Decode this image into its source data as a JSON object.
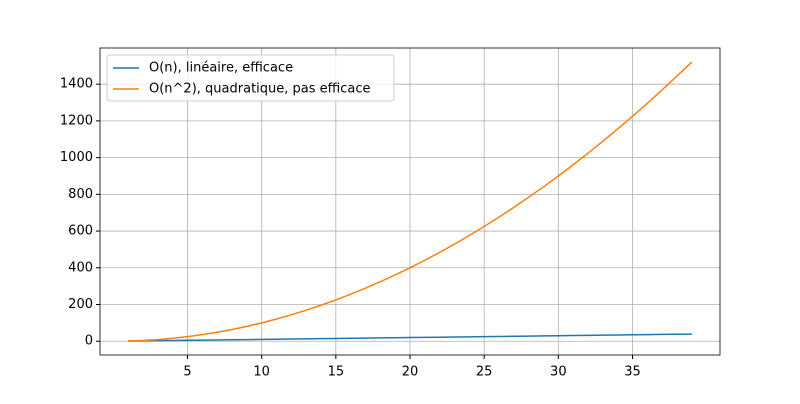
{
  "chart_data": {
    "type": "line",
    "x": [
      1,
      2,
      3,
      4,
      5,
      6,
      7,
      8,
      9,
      10,
      11,
      12,
      13,
      14,
      15,
      16,
      17,
      18,
      19,
      20,
      21,
      22,
      23,
      24,
      25,
      26,
      27,
      28,
      29,
      30,
      31,
      32,
      33,
      34,
      35,
      36,
      37,
      38,
      39
    ],
    "series": [
      {
        "name": "O(n), linéaire, efficace",
        "color": "#1f77b4",
        "values": [
          1,
          2,
          3,
          4,
          5,
          6,
          7,
          8,
          9,
          10,
          11,
          12,
          13,
          14,
          15,
          16,
          17,
          18,
          19,
          20,
          21,
          22,
          23,
          24,
          25,
          26,
          27,
          28,
          29,
          30,
          31,
          32,
          33,
          34,
          35,
          36,
          37,
          38,
          39
        ]
      },
      {
        "name": "O(n^2), quadratique, pas efficace",
        "color": "#ff7f0e",
        "values": [
          1,
          4,
          9,
          16,
          25,
          36,
          49,
          64,
          81,
          100,
          121,
          144,
          169,
          196,
          225,
          256,
          289,
          324,
          361,
          400,
          441,
          484,
          529,
          576,
          625,
          676,
          729,
          784,
          841,
          900,
          961,
          1024,
          1089,
          1156,
          1225,
          1296,
          1369,
          1444,
          1521
        ]
      }
    ],
    "xlim": [
      -0.9,
      40.9
    ],
    "xticks": [
      5,
      10,
      15,
      20,
      25,
      30,
      35
    ],
    "ylim": [
      -75,
      1597
    ],
    "yticks": [
      0,
      200,
      400,
      600,
      800,
      1000,
      1200,
      1400
    ],
    "grid": true,
    "legend": "upper-left"
  }
}
